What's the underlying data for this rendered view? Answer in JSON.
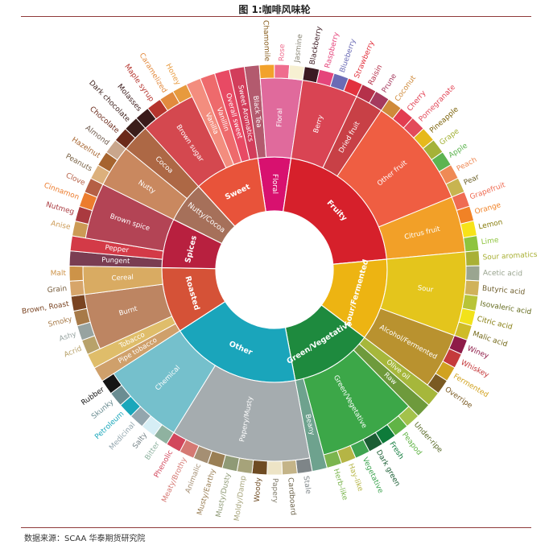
{
  "title": "图 1:咖啡风味轮",
  "source": "数据来源：SCAA 华泰期货研究院",
  "chart_data": {
    "type": "sunburst",
    "title": "图 1:咖啡风味轮",
    "categories": [
      {
        "name": "Floral",
        "color": "#d8116f",
        "sub": [
          {
            "name": "Black Tea",
            "color": "#b35a6e",
            "leaves": []
          },
          {
            "name": "Floral",
            "color": "#e06a9c",
            "leaves": [
              {
                "name": "Chamomile",
                "color": "#f2a22b"
              },
              {
                "name": "Rose",
                "color": "#ef6d8e"
              },
              {
                "name": "Jasmine",
                "color": "#f7f0d2"
              }
            ]
          }
        ]
      },
      {
        "name": "Fruity",
        "color": "#d6202b",
        "sub": [
          {
            "name": "Berry",
            "color": "#d94453",
            "leaves": [
              {
                "name": "Blackberry",
                "color": "#3b1a22"
              },
              {
                "name": "Raspberry",
                "color": "#e5457b"
              },
              {
                "name": "Blueberry",
                "color": "#6b6bb5"
              },
              {
                "name": "Strawberry",
                "color": "#e2323e"
              }
            ]
          },
          {
            "name": "Dried fruit",
            "color": "#c84046",
            "leaves": [
              {
                "name": "Raisin",
                "color": "#b5314a"
              },
              {
                "name": "Prune",
                "color": "#a53a5e"
              }
            ]
          },
          {
            "name": "Other fruit",
            "color": "#ef5e42",
            "leaves": [
              {
                "name": "Coconut",
                "color": "#cf8a3a"
              },
              {
                "name": "Cherry",
                "color": "#e23d50"
              },
              {
                "name": "Pomegranate",
                "color": "#e34a5a"
              },
              {
                "name": "Pineapple",
                "color": "#e6b91c"
              },
              {
                "name": "Grape",
                "color": "#a4b238"
              },
              {
                "name": "Apple",
                "color": "#5db450"
              },
              {
                "name": "Peach",
                "color": "#ef8a55"
              },
              {
                "name": "Pear",
                "color": "#c8b450"
              }
            ]
          },
          {
            "name": "Citrus fruit",
            "color": "#f2a028",
            "leaves": [
              {
                "name": "Grapefruit",
                "color": "#ef6b52"
              },
              {
                "name": "Orange",
                "color": "#f18226"
              },
              {
                "name": "Lemon",
                "color": "#f7e318"
              },
              {
                "name": "Lime",
                "color": "#8ec43e"
              }
            ]
          }
        ]
      },
      {
        "name": "Sour/Fermented",
        "color": "#edb412",
        "sub": [
          {
            "name": "Sour",
            "color": "#e4c51c",
            "leaves": [
              {
                "name": "Sour aromatics",
                "color": "#a9b035"
              },
              {
                "name": "Acetic acid",
                "color": "#9aa590"
              },
              {
                "name": "Butyric acid",
                "color": "#d0b25a"
              },
              {
                "name": "Isovaleric acid",
                "color": "#b8c438"
              },
              {
                "name": "Citric acid",
                "color": "#f2e21a"
              },
              {
                "name": "Malic acid",
                "color": "#cfbc28"
              }
            ]
          },
          {
            "name": "Alcohol/Fermented",
            "color": "#b9922f",
            "leaves": [
              {
                "name": "Winey",
                "color": "#8e1b48"
              },
              {
                "name": "Whiskey",
                "color": "#c53a3c"
              },
              {
                "name": "Fermented",
                "color": "#d1a21f"
              },
              {
                "name": "Overripe",
                "color": "#7a5a22"
              }
            ]
          }
        ]
      },
      {
        "name": "Green/Vegetative",
        "color": "#1e8a3e",
        "sub": [
          {
            "name": "Olive oil",
            "color": "#a6b73b",
            "leaves": []
          },
          {
            "name": "Raw",
            "color": "#6e9a3c",
            "leaves": []
          },
          {
            "name": "Green/Vegetative",
            "color": "#3ca748",
            "leaves": [
              {
                "name": "Under-ripe",
                "color": "#a3c24b"
              },
              {
                "name": "Peapod",
                "color": "#61b446"
              },
              {
                "name": "Fresh",
                "color": "#0e7b3a"
              },
              {
                "name": "Dark green",
                "color": "#1b5e34"
              },
              {
                "name": "Vegetative",
                "color": "#3ea450"
              },
              {
                "name": "Hay-like",
                "color": "#b5b545"
              },
              {
                "name": "Herb-like",
                "color": "#7bb54e"
              }
            ]
          },
          {
            "name": "Beany",
            "color": "#6ea28e",
            "leaves": []
          }
        ]
      },
      {
        "name": "Other",
        "color": "#1aa5bb",
        "sub": [
          {
            "name": "Papery/Musty",
            "color": "#a5acaf",
            "leaves": [
              {
                "name": "Stale",
                "color": "#7e8588"
              },
              {
                "name": "Cardboard",
                "color": "#c4b488"
              },
              {
                "name": "Papery",
                "color": "#ede4c6"
              },
              {
                "name": "Woody",
                "color": "#6e4b22"
              },
              {
                "name": "Moldy/Damp",
                "color": "#a6a37a"
              },
              {
                "name": "Musty/Dusty",
                "color": "#8f9a76"
              },
              {
                "name": "Musty/Earthy",
                "color": "#9a7f55"
              },
              {
                "name": "Animalic",
                "color": "#a58f73"
              },
              {
                "name": "Meaty/Brothy",
                "color": "#d57973"
              },
              {
                "name": "Phenolic",
                "color": "#d2475c"
              }
            ]
          },
          {
            "name": "Chemical",
            "color": "#75c0cc",
            "leaves": [
              {
                "name": "Bitter",
                "color": "#8fb2a0"
              },
              {
                "name": "Salty",
                "color": "#d6eef5"
              },
              {
                "name": "Medicinal",
                "color": "#93a6ae"
              },
              {
                "name": "Petroleum",
                "color": "#1aa7bb"
              },
              {
                "name": "Skunky",
                "color": "#6b8d92"
              },
              {
                "name": "Rubber",
                "color": "#151515"
              }
            ]
          }
        ]
      },
      {
        "name": "Roasted",
        "color": "#d55237",
        "sub": [
          {
            "name": "Pipe tobacco",
            "color": "#cfa06b",
            "leaves": []
          },
          {
            "name": "Tobacco",
            "color": "#dfbd6a",
            "leaves": []
          },
          {
            "name": "Burnt",
            "color": "#bd8562",
            "leaves": [
              {
                "name": "Acrid",
                "color": "#b8a26a"
              },
              {
                "name": "Ashy",
                "color": "#97a3a0"
              },
              {
                "name": "Smoky",
                "color": "#a77a48"
              },
              {
                "name": "Brown, Roast",
                "color": "#7a4422"
              }
            ]
          },
          {
            "name": "Cereal",
            "color": "#d9ab62",
            "leaves": [
              {
                "name": "Grain",
                "color": "#d7a56a"
              },
              {
                "name": "Malt",
                "color": "#cd9348"
              }
            ]
          }
        ]
      },
      {
        "name": "Spices",
        "color": "#b8203f",
        "sub": [
          {
            "name": "Pungent",
            "color": "#7a3d52",
            "leaves": []
          },
          {
            "name": "Pepper",
            "color": "#d33a47",
            "leaves": []
          },
          {
            "name": "Brown spice",
            "color": "#b34455",
            "leaves": [
              {
                "name": "Anise",
                "color": "#cc9a55"
              },
              {
                "name": "Nutmeg",
                "color": "#aa3a3f"
              },
              {
                "name": "Cinnamon",
                "color": "#ec7c2e"
              },
              {
                "name": "Clove",
                "color": "#b55f45"
              }
            ]
          }
        ]
      },
      {
        "name": "Nutty/Cocoa",
        "color": "#a6705a",
        "sub": [
          {
            "name": "Nutty",
            "color": "#c9885f",
            "leaves": [
              {
                "name": "Peanuts",
                "color": "#dcb07c"
              },
              {
                "name": "Hazelnut",
                "color": "#a6642f"
              },
              {
                "name": "Almond",
                "color": "#c9a68c"
              }
            ]
          },
          {
            "name": "Cocoa",
            "color": "#ad6845",
            "leaves": [
              {
                "name": "Chocolate",
                "color": "#6b2a1a"
              },
              {
                "name": "Dark chocolate",
                "color": "#3b1e1a"
              }
            ]
          }
        ]
      },
      {
        "name": "Sweet",
        "color": "#e8533a",
        "sub": [
          {
            "name": "Brown sugar",
            "color": "#d4484f",
            "leaves": [
              {
                "name": "Molasses",
                "color": "#3a1a1a"
              },
              {
                "name": "Maple syrup",
                "color": "#b5342d"
              },
              {
                "name": "Caramelized",
                "color": "#e28a3e"
              },
              {
                "name": "Honey",
                "color": "#e79a3e"
              }
            ]
          },
          {
            "name": "Vanilla",
            "color": "#f38d7e",
            "leaves": []
          },
          {
            "name": "Vanillin",
            "color": "#ee6a6c",
            "leaves": []
          },
          {
            "name": "Overall sweet",
            "color": "#e84a64",
            "leaves": []
          },
          {
            "name": "Sweet Aromatics",
            "color": "#d23d5b",
            "leaves": []
          }
        ]
      }
    ]
  }
}
